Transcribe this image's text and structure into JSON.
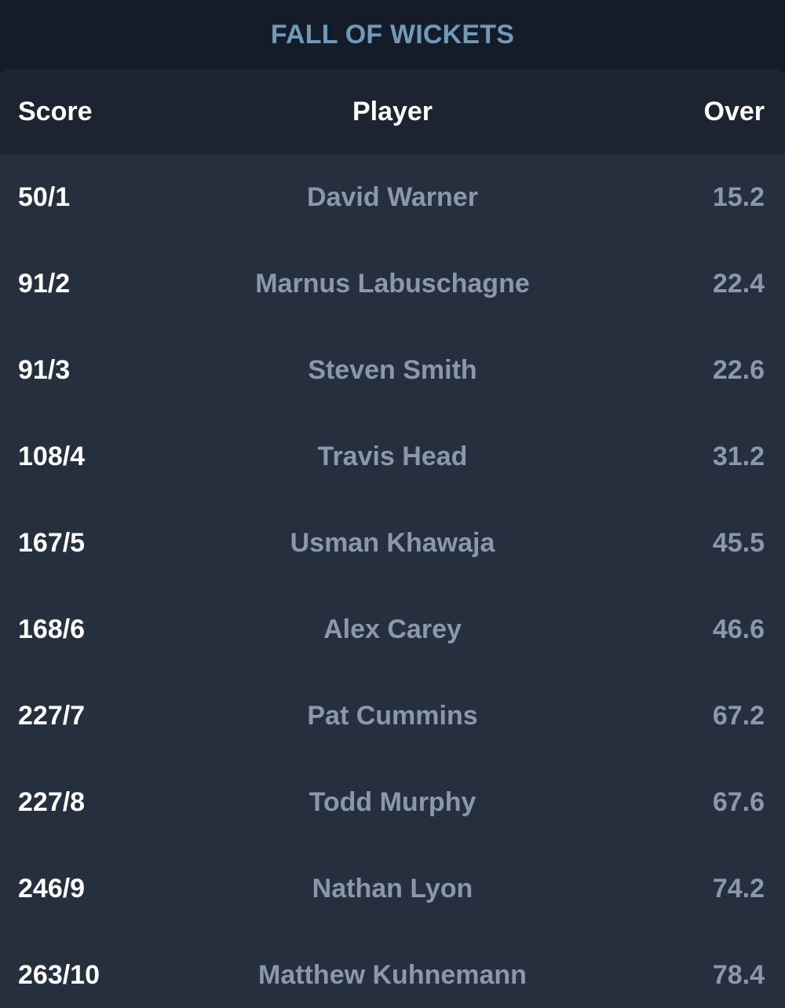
{
  "title": "FALL OF WICKETS",
  "columns": {
    "score": "Score",
    "player": "Player",
    "over": "Over"
  },
  "rows": [
    {
      "score": "50/1",
      "player": "David Warner",
      "over": "15.2"
    },
    {
      "score": "91/2",
      "player": "Marnus Labuschagne",
      "over": "22.4"
    },
    {
      "score": "91/3",
      "player": "Steven Smith",
      "over": "22.6"
    },
    {
      "score": "108/4",
      "player": "Travis Head",
      "over": "31.2"
    },
    {
      "score": "167/5",
      "player": "Usman Khawaja",
      "over": "45.5"
    },
    {
      "score": "168/6",
      "player": "Alex Carey",
      "over": "46.6"
    },
    {
      "score": "227/7",
      "player": "Pat Cummins",
      "over": "67.2"
    },
    {
      "score": "227/8",
      "player": "Todd Murphy",
      "over": "67.6"
    },
    {
      "score": "246/9",
      "player": "Nathan Lyon",
      "over": "74.2"
    },
    {
      "score": "263/10",
      "player": "Matthew Kuhnemann",
      "over": "78.4"
    }
  ],
  "colors": {
    "background": "#141b29",
    "panel": "#262f3d",
    "header": "#1d2431",
    "title": "#6f9bb9",
    "muted_text": "#8b97ab",
    "primary_text": "#ffffff"
  }
}
